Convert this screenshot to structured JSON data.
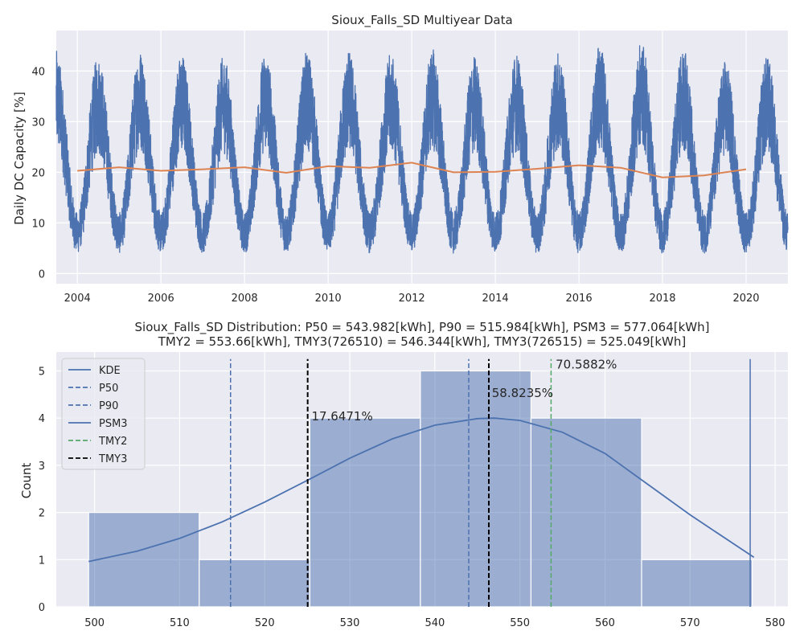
{
  "chart_data": [
    {
      "type": "line",
      "title": "Sioux_Falls_SD Multiyear Data",
      "xlabel": "",
      "ylabel": "Daily DC Capacity [%]",
      "xlim": [
        "2003-07-01",
        "2021-01-01"
      ],
      "ylim": [
        -2,
        48
      ],
      "xticks": [
        "2004",
        "2006",
        "2008",
        "2010",
        "2012",
        "2014",
        "2016",
        "2018",
        "2020"
      ],
      "yticks": [
        0,
        10,
        20,
        30,
        40
      ],
      "grid": true,
      "series": [
        {
          "kind": "daily_capacity_band",
          "color": "#4c72b0",
          "note_values": "daily series spanning 2003-07 to 2021-01; seasonal envelope",
          "peaks": [
            {
              "date": "2003-07-01",
              "value": 44
            },
            {
              "date": "2004-07-01",
              "value": 43
            },
            {
              "date": "2005-06-15",
              "value": 44.5
            },
            {
              "date": "2006-06-15",
              "value": 43.5
            },
            {
              "date": "2007-06-15",
              "value": 43
            },
            {
              "date": "2008-07-01",
              "value": 44
            },
            {
              "date": "2009-06-15",
              "value": 44
            },
            {
              "date": "2010-06-15",
              "value": 44
            },
            {
              "date": "2011-06-15",
              "value": 43.5
            },
            {
              "date": "2012-06-15",
              "value": 44.5
            },
            {
              "date": "2013-07-01",
              "value": 43
            },
            {
              "date": "2014-06-15",
              "value": 43.5
            },
            {
              "date": "2015-06-15",
              "value": 44
            },
            {
              "date": "2016-06-15",
              "value": 45
            },
            {
              "date": "2017-06-15",
              "value": 46
            },
            {
              "date": "2018-06-15",
              "value": 44.5
            },
            {
              "date": "2019-07-01",
              "value": 42
            },
            {
              "date": "2020-07-01",
              "value": 43
            }
          ],
          "troughs": [
            {
              "date": "2004-01-01",
              "value": 0.5
            },
            {
              "date": "2005-01-01",
              "value": 0.8
            },
            {
              "date": "2006-01-01",
              "value": 1
            },
            {
              "date": "2007-01-01",
              "value": 1.5
            },
            {
              "date": "2008-01-01",
              "value": 1
            },
            {
              "date": "2009-01-01",
              "value": 0.5
            },
            {
              "date": "2010-01-01",
              "value": 0
            },
            {
              "date": "2011-01-01",
              "value": 0.5
            },
            {
              "date": "2012-01-01",
              "value": 1
            },
            {
              "date": "2013-01-01",
              "value": 0
            },
            {
              "date": "2014-01-01",
              "value": 0
            },
            {
              "date": "2015-01-01",
              "value": 1
            },
            {
              "date": "2016-01-01",
              "value": 0.5
            },
            {
              "date": "2017-01-01",
              "value": 1.5
            },
            {
              "date": "2018-01-01",
              "value": 0.5
            },
            {
              "date": "2019-01-01",
              "value": 0.5
            },
            {
              "date": "2020-01-01",
              "value": 0.5
            },
            {
              "date": "2021-01-01",
              "value": 1
            }
          ]
        },
        {
          "kind": "annual_mean",
          "color": "#dd8452",
          "x": [
            "2004-01-01",
            "2005-01-01",
            "2006-01-01",
            "2007-01-01",
            "2008-01-01",
            "2009-01-01",
            "2010-01-01",
            "2011-01-01",
            "2012-01-01",
            "2013-01-01",
            "2014-01-01",
            "2015-01-01",
            "2016-01-01",
            "2017-01-01",
            "2018-01-01",
            "2019-01-01",
            "2020-01-01"
          ],
          "y": [
            20.3,
            21.0,
            20.3,
            20.6,
            21.0,
            19.9,
            21.2,
            20.9,
            21.9,
            20.0,
            20.1,
            20.7,
            21.4,
            20.9,
            19.0,
            19.4,
            20.6
          ]
        }
      ]
    },
    {
      "type": "histogram",
      "title_lines": [
        "Sioux_Falls_SD Distribution: P50 = 543.982[kWh], P90 = 515.984[kWh], PSM3 = 577.064[kWh]",
        "TMY2 = 553.66[kWh], TMY3(726510) = 546.344[kWh], TMY3(726515) = 525.049[kWh]"
      ],
      "xlabel": "",
      "ylabel": "Count",
      "xlim": [
        495.5,
        581.5
      ],
      "ylim": [
        0,
        5.4
      ],
      "xticks": [
        500,
        510,
        520,
        530,
        540,
        550,
        560,
        570,
        580
      ],
      "yticks": [
        0,
        1,
        2,
        3,
        4,
        5
      ],
      "grid": true,
      "bins": [
        {
          "x0": 499.3,
          "x1": 512.3,
          "count": 2
        },
        {
          "x0": 512.3,
          "x1": 525.3,
          "count": 1
        },
        {
          "x0": 525.3,
          "x1": 538.3,
          "count": 4
        },
        {
          "x0": 538.3,
          "x1": 551.3,
          "count": 5
        },
        {
          "x0": 551.3,
          "x1": 564.3,
          "count": 4
        },
        {
          "x0": 564.3,
          "x1": 577.3,
          "count": 1
        }
      ],
      "bar_color": "#4c72b0",
      "kde": {
        "color": "#4c72b0",
        "x": [
          499.3,
          505,
          510,
          515,
          520,
          525,
          530,
          535,
          540,
          545,
          547,
          550,
          555,
          560,
          565,
          570,
          575,
          577.5
        ],
        "y": [
          0.96,
          1.18,
          1.45,
          1.8,
          2.22,
          2.68,
          3.15,
          3.56,
          3.85,
          3.99,
          4.0,
          3.95,
          3.7,
          3.25,
          2.6,
          1.95,
          1.35,
          1.05
        ]
      },
      "vlines": [
        {
          "name": "P50",
          "x": 543.982,
          "style": "dashed",
          "color": "#4c72b0"
        },
        {
          "name": "P90",
          "x": 515.984,
          "style": "dashed",
          "color": "#4c72b0"
        },
        {
          "name": "PSM3",
          "x": 577.064,
          "style": "solid",
          "color": "#4c72b0"
        },
        {
          "name": "TMY2",
          "x": 553.66,
          "style": "dashed",
          "color": "#55a868"
        },
        {
          "name": "TMY3",
          "x": 546.344,
          "style": "dashed",
          "color": "#000000"
        },
        {
          "name": "TMY3",
          "x": 525.049,
          "style": "dashed",
          "color": "#000000"
        }
      ],
      "annotations": [
        {
          "text": "70.5882%",
          "x": 554.2,
          "y": 5.05
        },
        {
          "text": "58.8235%",
          "x": 546.7,
          "y": 4.45
        },
        {
          "text": "17.6471%",
          "x": 525.5,
          "y": 3.95
        }
      ],
      "legend": {
        "placement": "top-left",
        "entries": [
          {
            "label": "KDE",
            "style": "solid",
            "color": "#4c72b0"
          },
          {
            "label": "P50",
            "style": "dashed",
            "color": "#4c72b0"
          },
          {
            "label": "P90",
            "style": "dashed",
            "color": "#4c72b0"
          },
          {
            "label": "PSM3",
            "style": "solid",
            "color": "#4c72b0"
          },
          {
            "label": "TMY2",
            "style": "dashed",
            "color": "#55a868"
          },
          {
            "label": "TMY3",
            "style": "dashed",
            "color": "#000000"
          }
        ]
      }
    }
  ],
  "theme": {
    "plot_bg": "#eaeaf2",
    "grid": "#ffffff",
    "text": "#262626"
  }
}
